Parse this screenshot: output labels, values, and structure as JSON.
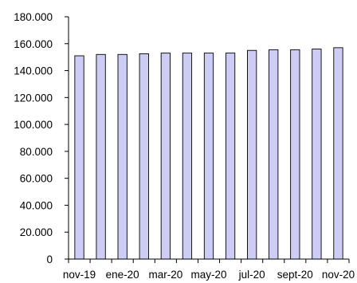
{
  "chart_data": {
    "type": "bar",
    "title": "",
    "xlabel": "",
    "ylabel": "",
    "ylim": [
      0,
      180000
    ],
    "y_ticks": [
      0,
      20000,
      40000,
      60000,
      80000,
      100000,
      120000,
      140000,
      160000,
      180000
    ],
    "y_tick_labels": [
      "0",
      "20.000",
      "40.000",
      "60.000",
      "80.000",
      "100.000",
      "120.000",
      "140.000",
      "160.000",
      "180.000"
    ],
    "categories": [
      "nov-19",
      "dic-19",
      "ene-20",
      "feb-20",
      "mar-20",
      "abr-20",
      "may-20",
      "jun-20",
      "jul-20",
      "ago-20",
      "sept-20",
      "oct-20",
      "nov-20"
    ],
    "x_tick_labels_shown": [
      "nov-19",
      "ene-20",
      "mar-20",
      "may-20",
      "jul-20",
      "sept-20",
      "nov-20"
    ],
    "values": [
      151000,
      152000,
      152000,
      152500,
      153000,
      153000,
      153000,
      153000,
      155000,
      155500,
      155500,
      156000,
      157000
    ],
    "bar_color": "#ccccf5",
    "grid": false,
    "legend": "none"
  }
}
